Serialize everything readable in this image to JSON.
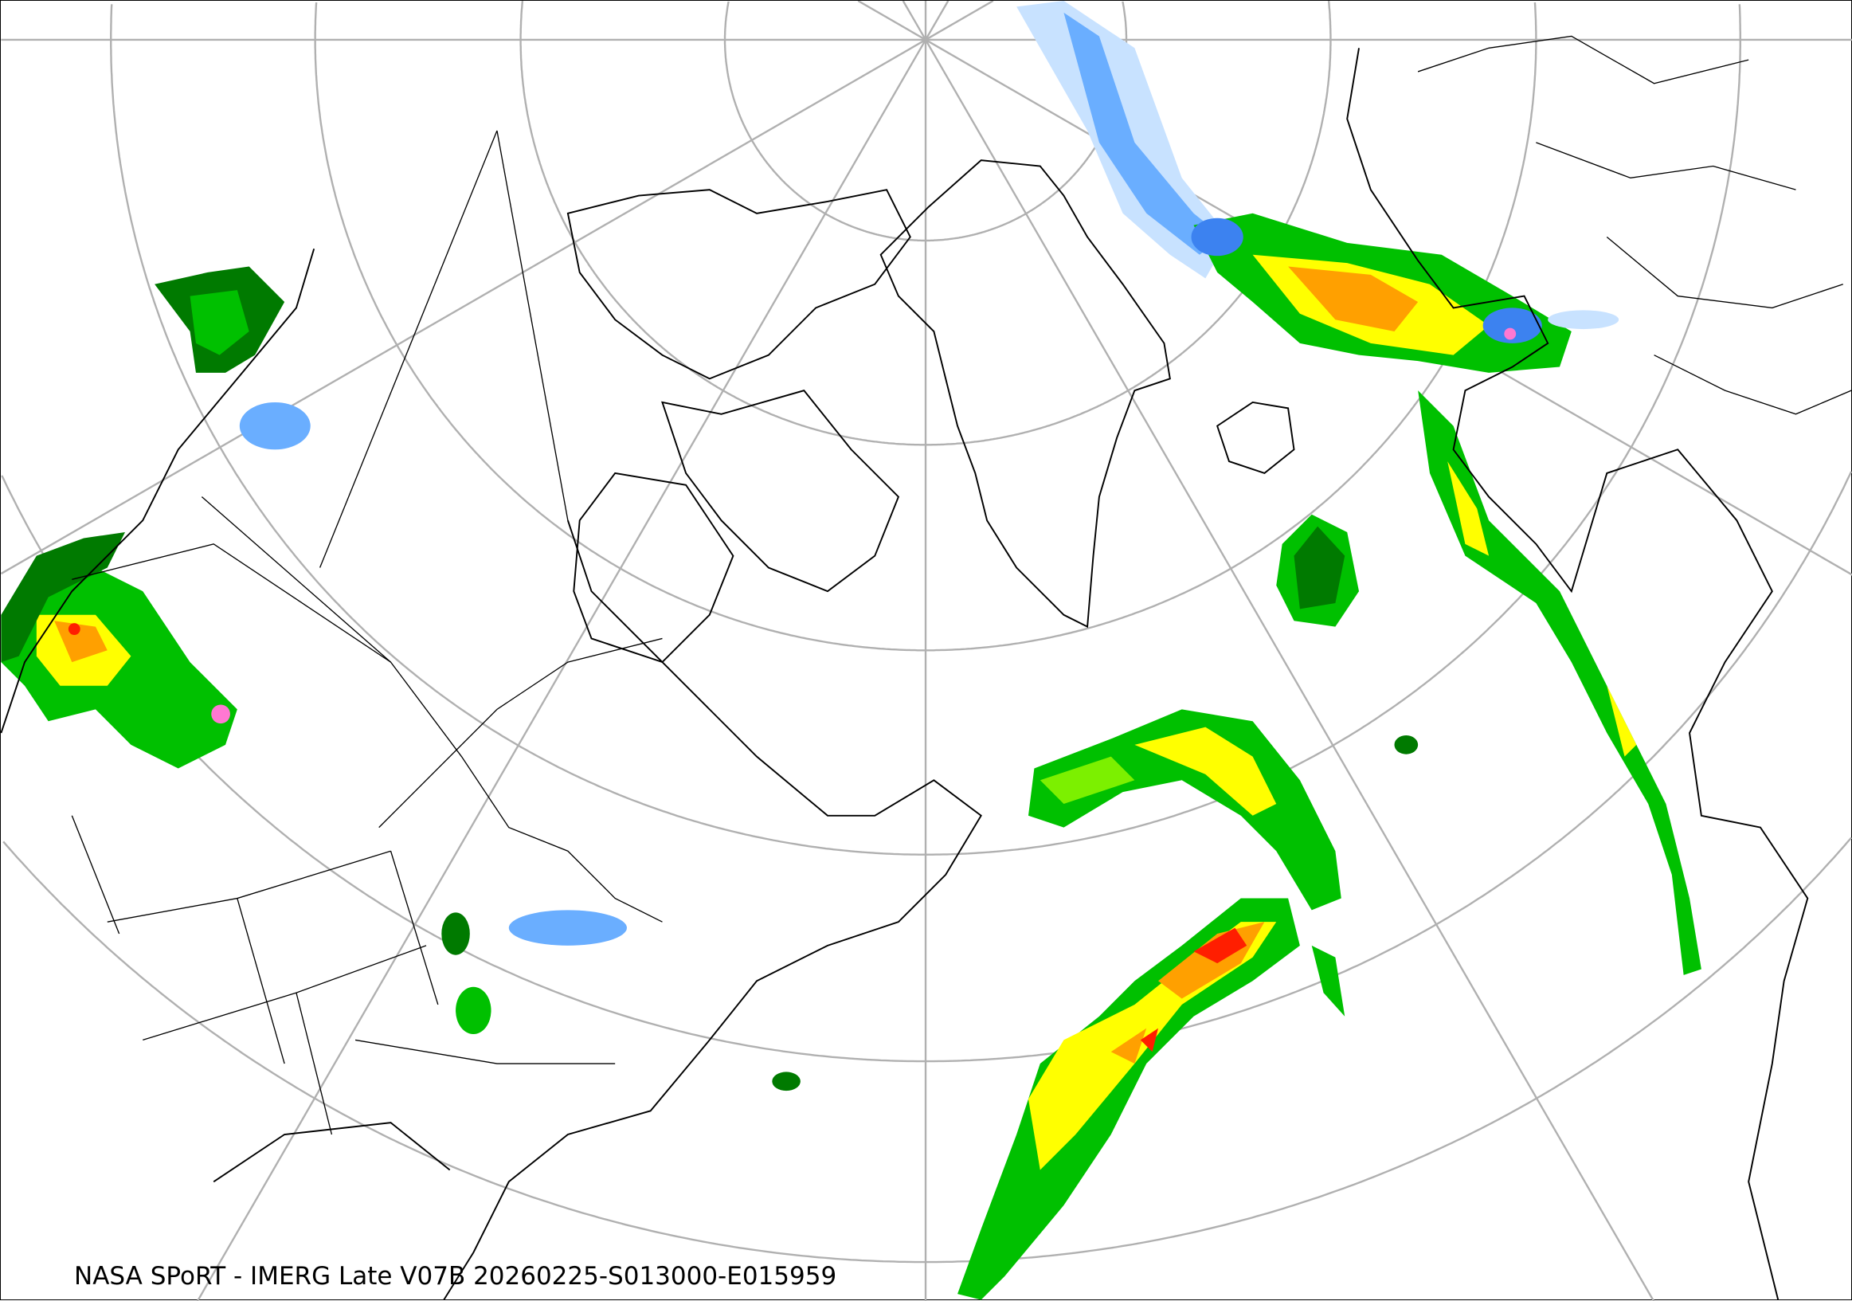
{
  "caption": "NASA SPoRT - IMERG Late V07B 20260225-S013000-E015959",
  "map": {
    "projection": "north-polar stereographic",
    "graticule_color": "#b0b0b0",
    "coastline_color": "#000000",
    "precip_colors": {
      "very_light": "#c8e2ff",
      "light": "#6aaeff",
      "moderate_blue": "#3c82f0",
      "dark_green": "#007a00",
      "green": "#00c000",
      "light_green": "#7cf000",
      "yellow": "#ffff00",
      "orange": "#ffa000",
      "red": "#ff1e00",
      "pink": "#ff78d2"
    }
  }
}
